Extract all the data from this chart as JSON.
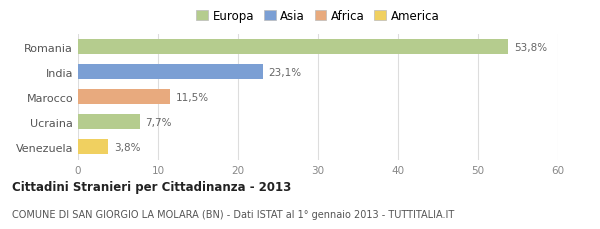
{
  "categories": [
    "Romania",
    "India",
    "Marocco",
    "Ucraina",
    "Venezuela"
  ],
  "values": [
    53.8,
    23.1,
    11.5,
    7.7,
    3.8
  ],
  "labels": [
    "53,8%",
    "23,1%",
    "11,5%",
    "7,7%",
    "3,8%"
  ],
  "bar_colors": [
    "#b5cc8e",
    "#7b9fd4",
    "#e8aa7e",
    "#b5cc8e",
    "#f0d060"
  ],
  "legend_items": [
    {
      "label": "Europa",
      "color": "#b5cc8e"
    },
    {
      "label": "Asia",
      "color": "#7b9fd4"
    },
    {
      "label": "Africa",
      "color": "#e8aa7e"
    },
    {
      "label": "America",
      "color": "#f0d060"
    }
  ],
  "xlim": [
    0,
    60
  ],
  "xticks": [
    0,
    10,
    20,
    30,
    40,
    50,
    60
  ],
  "title_bold": "Cittadini Stranieri per Cittadinanza - 2013",
  "subtitle": "COMUNE DI SAN GIORGIO LA MOLARA (BN) - Dati ISTAT al 1° gennaio 2013 - TUTTITALIA.IT",
  "background_color": "#ffffff",
  "grid_color": "#dddddd"
}
